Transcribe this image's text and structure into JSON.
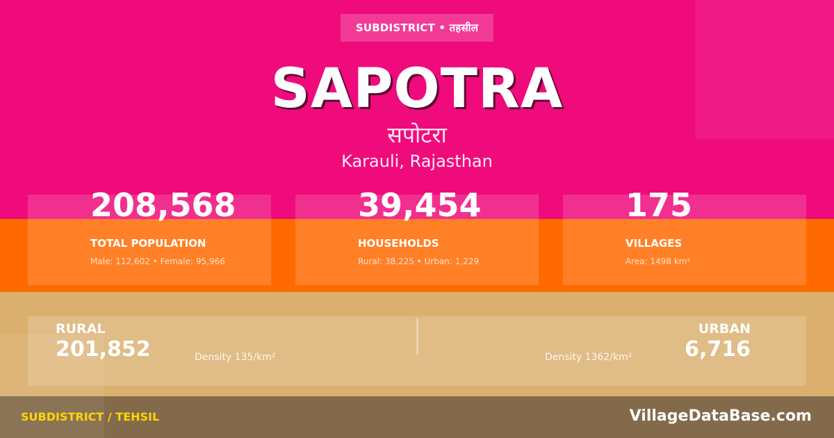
{
  "colors": {
    "pink": "#ef0b7c",
    "orange": "#ff6a00",
    "tan": "#dbb06f",
    "footer": "#836a4a",
    "footer_accent": "#ffd700"
  },
  "badge": "SUBDISTRICT • तहसील",
  "title": "SAPOTRA",
  "title_local": "सपोटरा",
  "location": "Karauli, Rajasthan",
  "stats": [
    {
      "value": "208,568",
      "label": "TOTAL POPULATION",
      "sub": "Male: 112,602 • Female: 95,966"
    },
    {
      "value": "39,454",
      "label": "HOUSEHOLDS",
      "sub": "Rural: 38,225 • Urban: 1,229"
    },
    {
      "value": "175",
      "label": "VILLAGES",
      "sub": "Area: 1498 km²"
    }
  ],
  "rural": {
    "label": "RURAL",
    "value": "201,852",
    "density": "Density 135/km²"
  },
  "urban": {
    "label": "URBAN",
    "value": "6,716",
    "density": "Density 1362/km²"
  },
  "footer": {
    "left": "SUBDISTRICT / TEHSIL",
    "right": "VillageDataBase.com"
  }
}
